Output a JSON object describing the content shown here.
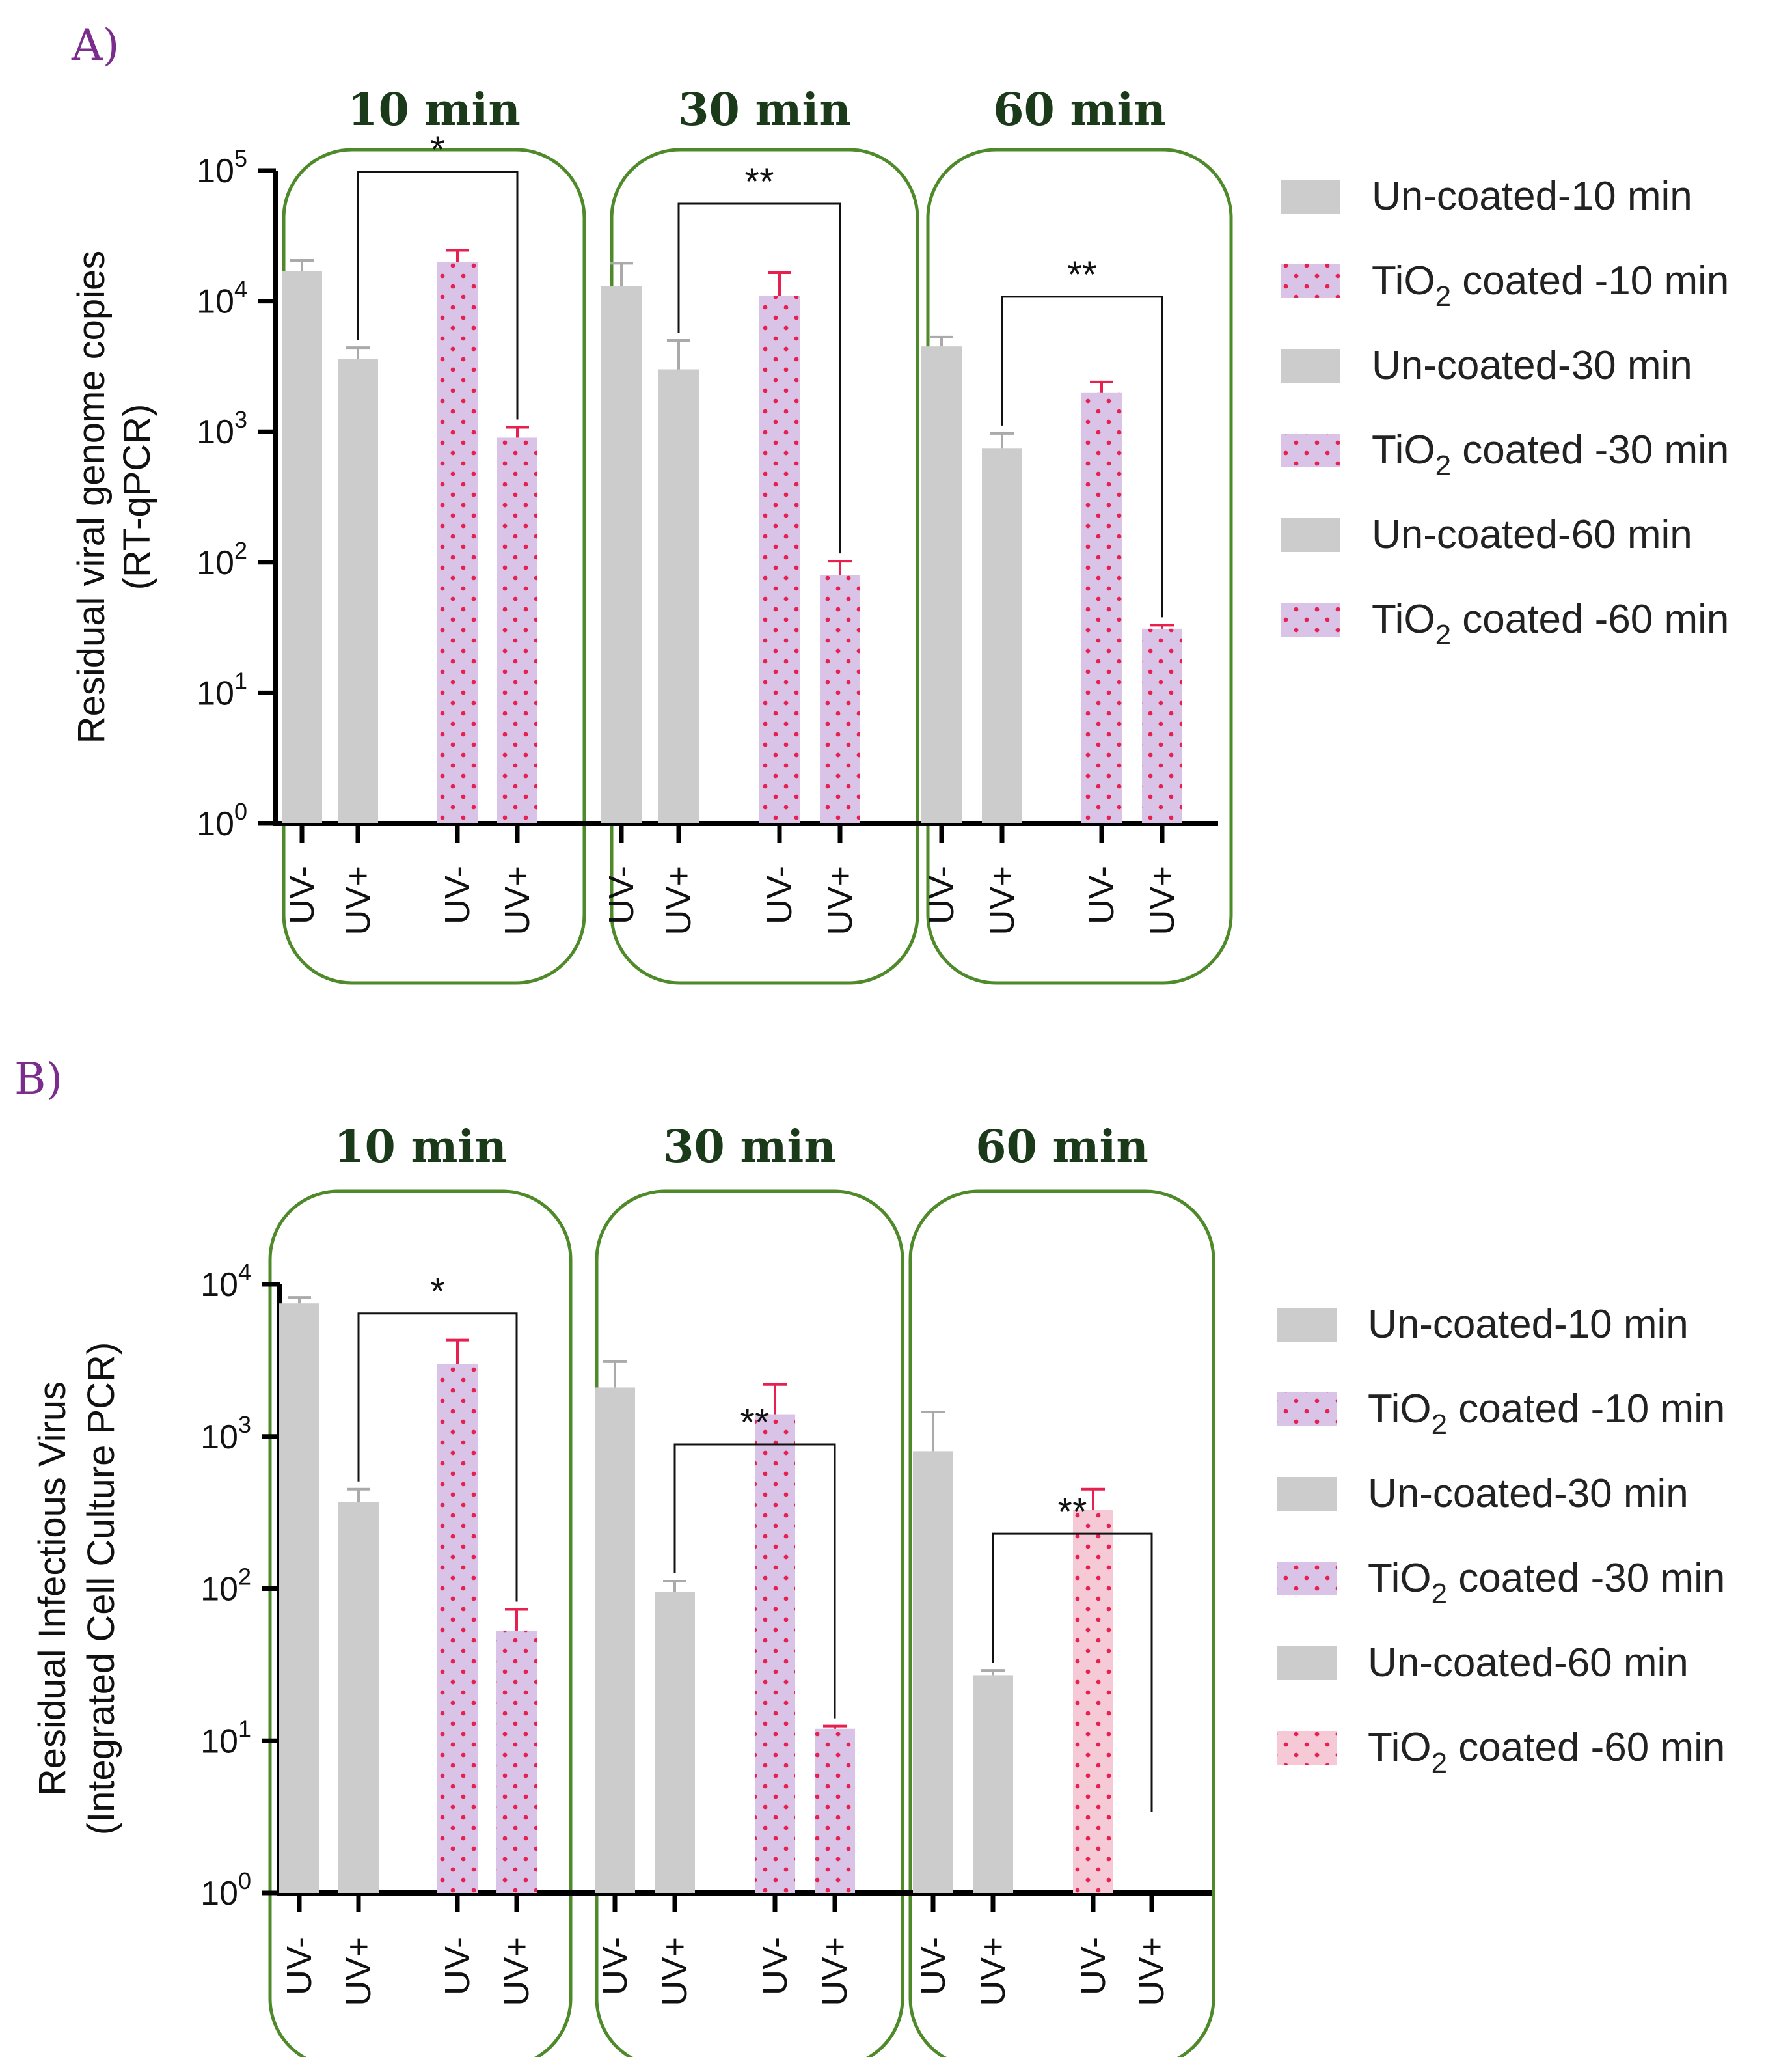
{
  "chart_data": [
    {
      "panel": "A)",
      "type": "bar",
      "scale": "log",
      "ylabel_line1": "Residual viral genome copies",
      "ylabel_line2": "(RT-qPCR)",
      "yticks": [
        {
          "base": "10",
          "exp": "0",
          "value": 1
        },
        {
          "base": "10",
          "exp": "1",
          "value": 10
        },
        {
          "base": "10",
          "exp": "2",
          "value": 100
        },
        {
          "base": "10",
          "exp": "3",
          "value": 1000
        },
        {
          "base": "10",
          "exp": "4",
          "value": 10000
        },
        {
          "base": "10",
          "exp": "5",
          "value": 100000
        }
      ],
      "ylim": [
        1,
        100000
      ],
      "categories": [
        "UV-",
        "UV+",
        "UV-",
        "UV+"
      ],
      "groups": [
        {
          "title": "10 min",
          "uncoated": [
            17000,
            3600
          ],
          "uncoated_err": [
            3500,
            800
          ],
          "coated": [
            20000,
            900
          ],
          "coated_err": [
            4500,
            180
          ],
          "significance": "*"
        },
        {
          "title": "30 min",
          "uncoated": [
            13000,
            3000
          ],
          "uncoated_err": [
            6500,
            2000
          ],
          "coated": [
            11000,
            80
          ],
          "coated_err": [
            5500,
            22
          ],
          "significance": "**"
        },
        {
          "title": "60 min",
          "uncoated": [
            4500,
            750
          ],
          "uncoated_err": [
            800,
            220
          ],
          "coated": [
            2000,
            31
          ],
          "coated_err": [
            400,
            2
          ],
          "significance": "**"
        }
      ],
      "legend": [
        {
          "main": "Un-coated-10 min",
          "sub": "",
          "rest": "",
          "style": "uncoated"
        },
        {
          "main": "TiO",
          "sub": "2",
          "rest": " coated -10 min",
          "style": "coated"
        },
        {
          "main": "Un-coated-30 min",
          "sub": "",
          "rest": "",
          "style": "uncoated"
        },
        {
          "main": "TiO",
          "sub": "2",
          "rest": " coated -30 min",
          "style": "coated"
        },
        {
          "main": "Un-coated-60 min",
          "sub": "",
          "rest": "",
          "style": "uncoated"
        },
        {
          "main": "TiO",
          "sub": "2",
          "rest": " coated -60 min",
          "style": "coated"
        }
      ]
    },
    {
      "panel": "B)",
      "type": "bar",
      "scale": "log",
      "ylabel_line1": "Residual Infectious Virus",
      "ylabel_line2": "(Integrated Cell Culture PCR)",
      "yticks": [
        {
          "base": "10",
          "exp": "0",
          "value": 1
        },
        {
          "base": "10",
          "exp": "1",
          "value": 10
        },
        {
          "base": "10",
          "exp": "2",
          "value": 100
        },
        {
          "base": "10",
          "exp": "3",
          "value": 1000
        },
        {
          "base": "10",
          "exp": "4",
          "value": 10000
        }
      ],
      "ylim": [
        1,
        10000
      ],
      "categories": [
        "UV-",
        "UV+",
        "UV-",
        "UV+"
      ],
      "groups": [
        {
          "title": "10 min",
          "uncoated": [
            7500,
            370
          ],
          "uncoated_err": [
            700,
            80
          ],
          "coated": [
            3000,
            53
          ],
          "coated_err": [
            1300,
            20
          ],
          "significance": "*"
        },
        {
          "title": "30 min",
          "uncoated": [
            2100,
            95
          ],
          "uncoated_err": [
            1000,
            17
          ],
          "coated": [
            1400,
            12
          ],
          "coated_err": [
            800,
            0.5
          ],
          "significance": "**"
        },
        {
          "title": "60 min",
          "uncoated": [
            800,
            27
          ],
          "uncoated_err": [
            650,
            2
          ],
          "coated": [
            330,
            null
          ],
          "coated_err": [
            120,
            null
          ],
          "significance": "**"
        }
      ],
      "legend": [
        {
          "main": "Un-coated-10 min",
          "sub": "",
          "rest": "",
          "style": "uncoated"
        },
        {
          "main": "TiO",
          "sub": "2",
          "rest": " coated -10 min",
          "style": "coated"
        },
        {
          "main": "Un-coated-30 min",
          "sub": "",
          "rest": "",
          "style": "uncoated"
        },
        {
          "main": "TiO",
          "sub": "2",
          "rest": " coated -30 min",
          "style": "coated"
        },
        {
          "main": "Un-coated-60 min",
          "sub": "",
          "rest": "",
          "style": "uncoated"
        },
        {
          "main": "TiO",
          "sub": "2",
          "rest": " coated -60 min",
          "style": "coated-pink"
        }
      ]
    }
  ],
  "colors": {
    "uncoated": "#cccccc",
    "uncoated_err": "#aaaaaa",
    "coated": "#d9c3e6",
    "coated_pink": "#f5c9d6",
    "dot": "#e6214f",
    "coated_err": "#e6214f",
    "group_border": "#4e8a2a",
    "axis": "#000000"
  }
}
